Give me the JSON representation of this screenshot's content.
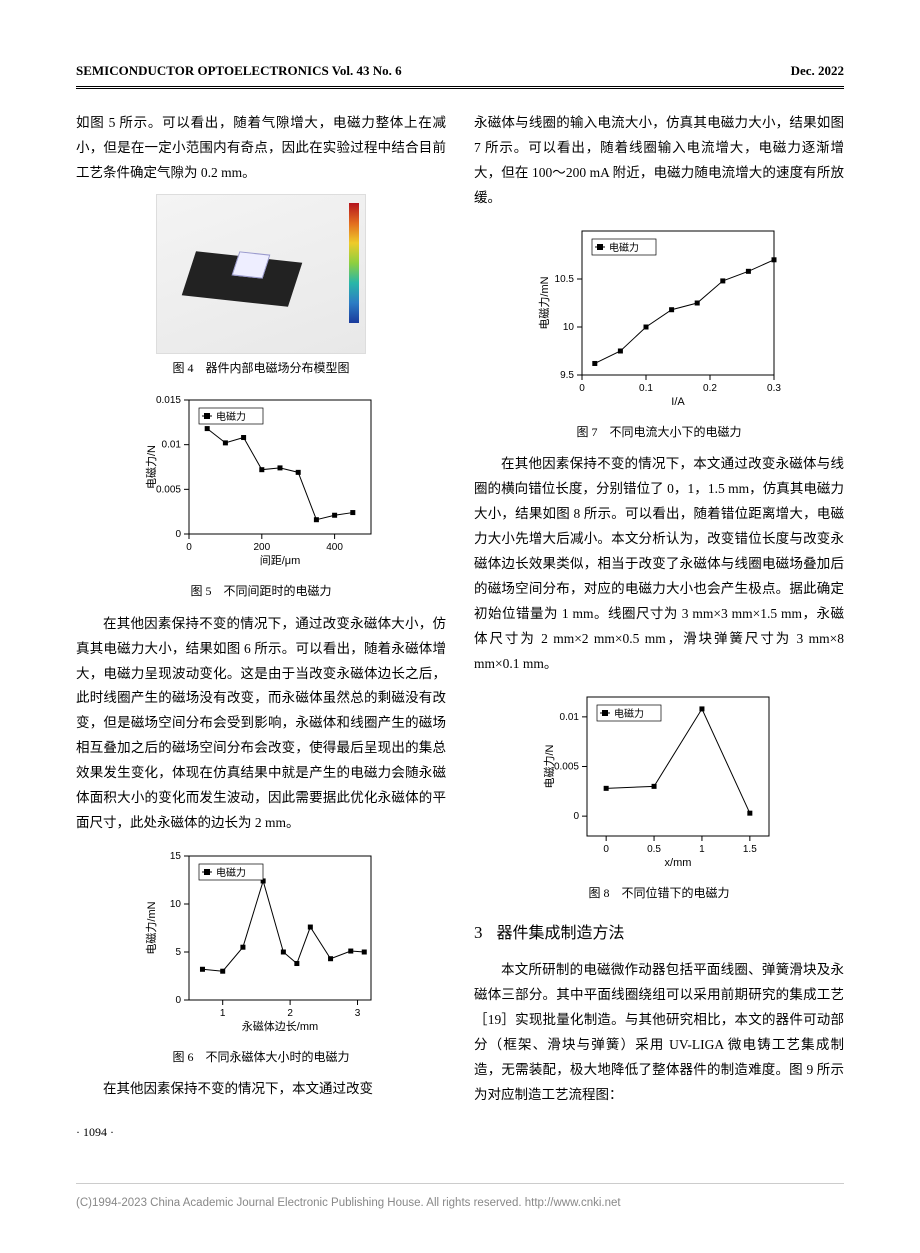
{
  "header": {
    "left": "SEMICONDUCTOR OPTOELECTRONICS    Vol. 43  No. 6",
    "right": "Dec. 2022"
  },
  "col_left": {
    "p1": "如图 5 所示。可以看出，随着气隙增大，电磁力整体上在减小，但是在一定小范围内有奇点，因此在实验过程中结合目前工艺条件确定气隙为 0.2 mm。",
    "fig4_caption": "图 4　器件内部电磁场分布模型图",
    "fig5": {
      "type": "line-scatter",
      "legend": "电磁力",
      "xlabel": "间距/μm",
      "ylabel": "电磁力/N",
      "xlim": [
        0,
        500
      ],
      "xticks": [
        0,
        200,
        400
      ],
      "ylim": [
        0,
        0.015
      ],
      "yticks": [
        0,
        0.005,
        0.01,
        0.015
      ],
      "x": [
        50,
        100,
        150,
        200,
        250,
        300,
        350,
        400,
        450
      ],
      "y": [
        0.0118,
        0.0102,
        0.0108,
        0.0072,
        0.0074,
        0.0069,
        0.0016,
        0.0021,
        0.0024
      ],
      "marker": "square",
      "marker_size": 5,
      "line_color": "#000000",
      "line_width": 1,
      "bg": "#ffffff",
      "frame": "#000000",
      "caption": "图 5　不同间距时的电磁力"
    },
    "p2": "在其他因素保持不变的情况下，通过改变永磁体大小，仿真其电磁力大小，结果如图 6 所示。可以看出，随着永磁体增大，电磁力呈现波动变化。这是由于当改变永磁体边长之后，此时线圈产生的磁场没有改变，而永磁体虽然总的剩磁没有改变，但是磁场空间分布会受到影响，永磁体和线圈产生的磁场相互叠加之后的磁场空间分布会改变，使得最后呈现出的集总效果发生变化，体现在仿真结果中就是产生的电磁力会随永磁体面积大小的变化而发生波动，因此需要据此优化永磁体的平面尺寸，此处永磁体的边长为 2 mm。",
    "fig6": {
      "type": "line-scatter",
      "legend": "电磁力",
      "xlabel": "永磁体边长/mm",
      "ylabel": "电磁力/mN",
      "xlim": [
        0.5,
        3.2
      ],
      "xticks": [
        1,
        2,
        3
      ],
      "ylim": [
        0,
        15
      ],
      "yticks": [
        0,
        5,
        10,
        15
      ],
      "x": [
        0.7,
        1.0,
        1.3,
        1.6,
        1.9,
        2.1,
        2.3,
        2.6,
        2.9,
        3.1
      ],
      "y": [
        3.2,
        3.0,
        5.5,
        12.4,
        5.0,
        3.8,
        7.6,
        4.3,
        5.1,
        5.0
      ],
      "marker": "square",
      "marker_size": 5,
      "line_color": "#000000",
      "line_width": 1,
      "bg": "#ffffff",
      "frame": "#000000",
      "caption": "图 6　不同永磁体大小时的电磁力"
    },
    "p3": "在其他因素保持不变的情况下，本文通过改变"
  },
  "col_right": {
    "p1": "永磁体与线圈的输入电流大小，仿真其电磁力大小，结果如图 7 所示。可以看出，随着线圈输入电流增大，电磁力逐渐增大，但在 100～200 mA 附近，电磁力随电流增大的速度有所放缓。",
    "fig7": {
      "type": "line-scatter",
      "legend": "电磁力",
      "xlabel": "I/A",
      "ylabel": "电磁力/mN",
      "xlim": [
        0,
        0.3
      ],
      "xticks": [
        0,
        0.1,
        0.2,
        0.3
      ],
      "ylim": [
        9.5,
        11.0
      ],
      "yticks": [
        9.5,
        10.0,
        10.5
      ],
      "x": [
        0.02,
        0.06,
        0.1,
        0.14,
        0.18,
        0.22,
        0.26,
        0.3
      ],
      "y": [
        9.62,
        9.75,
        10.0,
        10.18,
        10.25,
        10.48,
        10.58,
        10.7
      ],
      "marker": "square",
      "marker_size": 5,
      "line_color": "#000000",
      "line_width": 1,
      "bg": "#ffffff",
      "frame": "#000000",
      "caption": "图 7　不同电流大小下的电磁力"
    },
    "p2": "在其他因素保持不变的情况下，本文通过改变永磁体与线圈的横向错位长度，分别错位了 0，1，1.5 mm，仿真其电磁力大小，结果如图 8 所示。可以看出，随着错位距离增大，电磁力大小先增大后减小。本文分析认为，改变错位长度与改变永磁体边长效果类似，相当于改变了永磁体与线圈电磁场叠加后的磁场空间分布，对应的电磁力大小也会产生极点。据此确定初始位错量为 1 mm。线圈尺寸为 3 mm×3 mm×1.5 mm，永磁体尺寸为 2 mm×2 mm×0.5 mm，滑块弹簧尺寸为 3 mm×8 mm×0.1 mm。",
    "fig8": {
      "type": "line-scatter",
      "legend": "电磁力",
      "xlabel": "x/mm",
      "ylabel": "电磁力/N",
      "xlim": [
        -0.2,
        1.7
      ],
      "xticks": [
        0,
        0.5,
        1.0,
        1.5
      ],
      "ylim": [
        -0.002,
        0.012
      ],
      "yticks": [
        0,
        0.005,
        0.01
      ],
      "x": [
        0,
        0.5,
        1.0,
        1.5
      ],
      "y": [
        0.0028,
        0.003,
        0.0108,
        0.0003
      ],
      "marker": "square",
      "marker_size": 5,
      "line_color": "#000000",
      "line_width": 1,
      "bg": "#ffffff",
      "frame": "#000000",
      "caption": "图 8　不同位错下的电磁力"
    },
    "section3_num": "3",
    "section3_title": "器件集成制造方法",
    "p3": "本文所研制的电磁微作动器包括平面线圈、弹簧滑块及永磁体三部分。其中平面线圈绕组可以采用前期研究的集成工艺［19］实现批量化制造。与其他研究相比，本文的器件可动部分（框架、滑块与弹簧）采用 UV-LIGA 微电铸工艺集成制造，无需装配，极大地降低了整体器件的制造难度。图 9 所示为对应制造工艺流程图："
  },
  "page_number": "· 1094 ·",
  "footer_text": "(C)1994-2023 China Academic Journal Electronic Publishing House. All rights reserved.    http://www.cnki.net"
}
